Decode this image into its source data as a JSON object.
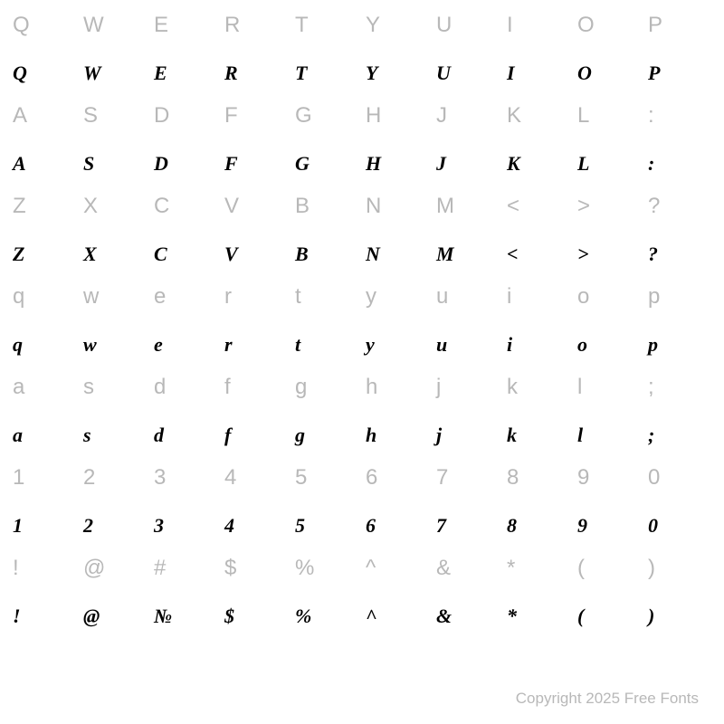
{
  "chart": {
    "type": "font-specimen-grid",
    "columns": 10,
    "rows": 14,
    "background_color": "#ffffff",
    "reference_char_color": "#b8b8b8",
    "reference_char_fontsize": 24,
    "sample_char_color": "#000000",
    "sample_char_fontsize": 22,
    "sample_font_style": "italic-script",
    "row_pairs": [
      {
        "reference": [
          "Q",
          "W",
          "E",
          "R",
          "T",
          "Y",
          "U",
          "I",
          "O",
          "P"
        ],
        "sample": [
          "Q",
          "W",
          "E",
          "R",
          "T",
          "Y",
          "U",
          "I",
          "O",
          "P"
        ]
      },
      {
        "reference": [
          "A",
          "S",
          "D",
          "F",
          "G",
          "H",
          "J",
          "K",
          "L",
          ":"
        ],
        "sample": [
          "A",
          "S",
          "D",
          "F",
          "G",
          "H",
          "J",
          "K",
          "L",
          ":"
        ]
      },
      {
        "reference": [
          "Z",
          "X",
          "C",
          "V",
          "B",
          "N",
          "M",
          "<",
          ">",
          "?"
        ],
        "sample": [
          "Z",
          "X",
          "C",
          "V",
          "B",
          "N",
          "M",
          "<",
          ">",
          "?"
        ]
      },
      {
        "reference": [
          "q",
          "w",
          "e",
          "r",
          "t",
          "y",
          "u",
          "i",
          "o",
          "p"
        ],
        "sample": [
          "q",
          "w",
          "e",
          "r",
          "t",
          "y",
          "u",
          "i",
          "o",
          "p"
        ]
      },
      {
        "reference": [
          "a",
          "s",
          "d",
          "f",
          "g",
          "h",
          "j",
          "k",
          "l",
          ";"
        ],
        "sample": [
          "a",
          "s",
          "d",
          "f",
          "g",
          "h",
          "j",
          "k",
          "l",
          ";"
        ]
      },
      {
        "reference": [
          "1",
          "2",
          "3",
          "4",
          "5",
          "6",
          "7",
          "8",
          "9",
          "0"
        ],
        "sample": [
          "1",
          "2",
          "3",
          "4",
          "5",
          "6",
          "7",
          "8",
          "9",
          "0"
        ]
      },
      {
        "reference": [
          "!",
          "@",
          "#",
          "$",
          "%",
          "^",
          "&",
          "*",
          "(",
          ")"
        ],
        "sample": [
          "!",
          "@",
          "№",
          "$",
          "%",
          "^",
          "&",
          "*",
          "(",
          ")"
        ]
      }
    ]
  },
  "copyright": "Copyright 2025 Free Fonts"
}
